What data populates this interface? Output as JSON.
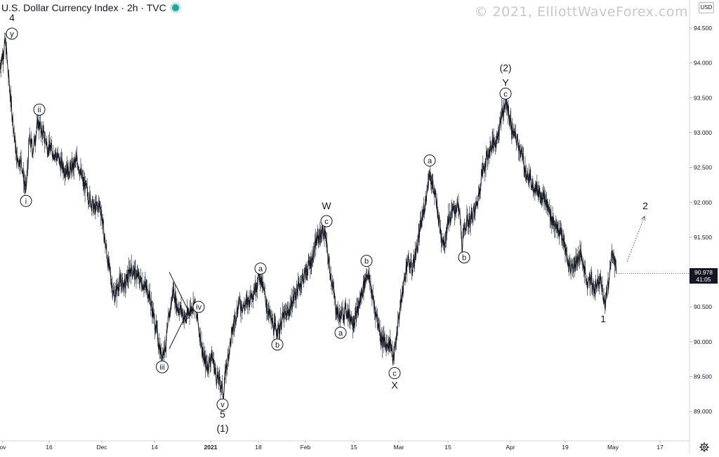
{
  "header": {
    "title": "U.S. Dollar Currency Index · 2h · TVC",
    "status_color": "#26a69a"
  },
  "watermark": "© 2021, ElliottWaveForex.com",
  "price_axis_unit": "USD",
  "last_price": {
    "value": "90.978",
    "countdown": "41:05",
    "numeric": 90.978
  },
  "settings_icon": "gear-icon",
  "chart_data": {
    "type": "line",
    "series": [
      {
        "values": [
          [
            0,
            93.95
          ],
          [
            8,
            94.3
          ],
          [
            12,
            93.8
          ],
          [
            17,
            93.3
          ],
          [
            24,
            92.6
          ],
          [
            30,
            92.6
          ],
          [
            37,
            92.15
          ],
          [
            42,
            92.9
          ],
          [
            47,
            92.75
          ],
          [
            54,
            93.15
          ],
          [
            60,
            93.0
          ],
          [
            68,
            92.8
          ],
          [
            78,
            92.7
          ],
          [
            90,
            92.5
          ],
          [
            100,
            92.45
          ],
          [
            110,
            92.6
          ],
          [
            118,
            92.3
          ],
          [
            126,
            92.1
          ],
          [
            134,
            91.9
          ],
          [
            143,
            91.95
          ],
          [
            150,
            91.4
          ],
          [
            157,
            90.95
          ],
          [
            163,
            90.65
          ],
          [
            170,
            90.85
          ],
          [
            178,
            90.8
          ],
          [
            186,
            91.05
          ],
          [
            194,
            90.95
          ],
          [
            203,
            90.85
          ],
          [
            212,
            90.7
          ],
          [
            220,
            90.3
          ],
          [
            226,
            90.0
          ],
          [
            230,
            89.8
          ],
          [
            236,
            89.95
          ],
          [
            241,
            90.35
          ],
          [
            247,
            90.75
          ],
          [
            252,
            90.5
          ],
          [
            258,
            90.45
          ],
          [
            264,
            90.3
          ],
          [
            270,
            90.45
          ],
          [
            277,
            90.55
          ],
          [
            284,
            90.15
          ],
          [
            290,
            89.75
          ],
          [
            296,
            89.65
          ],
          [
            302,
            89.8
          ],
          [
            308,
            89.5
          ],
          [
            314,
            89.4
          ],
          [
            318,
            89.25
          ],
          [
            322,
            89.6
          ],
          [
            327,
            89.9
          ],
          [
            333,
            90.25
          ],
          [
            340,
            90.55
          ],
          [
            348,
            90.5
          ],
          [
            355,
            90.6
          ],
          [
            362,
            90.75
          ],
          [
            370,
            90.95
          ],
          [
            376,
            90.7
          ],
          [
            383,
            90.4
          ],
          [
            390,
            90.2
          ],
          [
            396,
            90.15
          ],
          [
            403,
            90.35
          ],
          [
            410,
            90.4
          ],
          [
            417,
            90.6
          ],
          [
            424,
            90.75
          ],
          [
            431,
            90.9
          ],
          [
            438,
            91.05
          ],
          [
            445,
            91.2
          ],
          [
            451,
            91.45
          ],
          [
            457,
            91.55
          ],
          [
            462,
            91.6
          ],
          [
            468,
            91.15
          ],
          [
            473,
            90.85
          ],
          [
            478,
            90.5
          ],
          [
            483,
            90.35
          ],
          [
            488,
            90.4
          ],
          [
            493,
            90.45
          ],
          [
            499,
            90.35
          ],
          [
            505,
            90.3
          ],
          [
            512,
            90.55
          ],
          [
            518,
            90.8
          ],
          [
            523,
            91.0
          ],
          [
            528,
            90.8
          ],
          [
            533,
            90.5
          ],
          [
            538,
            90.3
          ],
          [
            543,
            90.05
          ],
          [
            550,
            89.95
          ],
          [
            556,
            90.0
          ],
          [
            560,
            89.7
          ],
          [
            563,
            89.95
          ],
          [
            568,
            90.35
          ],
          [
            574,
            90.75
          ],
          [
            580,
            91.15
          ],
          [
            587,
            91.05
          ],
          [
            593,
            91.3
          ],
          [
            598,
            91.6
          ],
          [
            603,
            91.85
          ],
          [
            608,
            92.15
          ],
          [
            612,
            92.45
          ],
          [
            617,
            92.2
          ],
          [
            622,
            91.95
          ],
          [
            628,
            91.55
          ],
          [
            633,
            91.4
          ],
          [
            638,
            91.75
          ],
          [
            645,
            91.85
          ],
          [
            651,
            91.95
          ],
          [
            655,
            91.8
          ],
          [
            658,
            91.35
          ],
          [
            663,
            91.7
          ],
          [
            670,
            91.75
          ],
          [
            676,
            91.85
          ],
          [
            681,
            92.05
          ],
          [
            686,
            92.4
          ],
          [
            692,
            92.6
          ],
          [
            698,
            92.75
          ],
          [
            703,
            92.85
          ],
          [
            708,
            92.9
          ],
          [
            713,
            93.2
          ],
          [
            718,
            93.35
          ],
          [
            722,
            93.4
          ],
          [
            727,
            93.15
          ],
          [
            732,
            92.95
          ],
          [
            738,
            92.85
          ],
          [
            745,
            92.6
          ],
          [
            751,
            92.35
          ],
          [
            757,
            92.3
          ],
          [
            763,
            92.2
          ],
          [
            769,
            92.15
          ],
          [
            775,
            92.05
          ],
          [
            781,
            91.9
          ],
          [
            787,
            91.75
          ],
          [
            793,
            91.6
          ],
          [
            799,
            91.55
          ],
          [
            805,
            91.35
          ],
          [
            810,
            91.1
          ],
          [
            815,
            91.05
          ],
          [
            820,
            91.15
          ],
          [
            826,
            91.25
          ],
          [
            831,
            91.1
          ],
          [
            836,
            90.85
          ],
          [
            841,
            90.9
          ],
          [
            846,
            90.75
          ],
          [
            851,
            90.85
          ],
          [
            856,
            90.95
          ],
          [
            860,
            90.55
          ],
          [
            864,
            90.65
          ],
          [
            868,
            90.95
          ],
          [
            872,
            91.3
          ],
          [
            876,
            91.15
          ],
          [
            878,
            90.978
          ]
        ]
      }
    ],
    "projection": {
      "from": [
        893,
        91.15
      ],
      "to": [
        918,
        91.8
      ]
    },
    "triangle": {
      "x0": 241,
      "y0_top": 91.0,
      "y0_bot": 89.9,
      "x1": 268,
      "y1": 90.45
    },
    "y_ticks": [
      "94.500",
      "94.000",
      "93.500",
      "93.000",
      "92.500",
      "92.000",
      "91.500",
      "91.000",
      "90.500",
      "90.000",
      "89.500",
      "89.000"
    ],
    "y_tick_values": [
      94.5,
      94.0,
      93.5,
      93.0,
      92.5,
      92.0,
      91.5,
      91.0,
      90.5,
      90.0,
      89.5,
      89.0
    ],
    "ylim": [
      88.5,
      95.0
    ],
    "x_ticks": [
      {
        "label": "ov",
        "x": 4
      },
      {
        "label": "16",
        "x": 70
      },
      {
        "label": "Dec",
        "x": 145
      },
      {
        "label": "14",
        "x": 220
      },
      {
        "label": "2021",
        "x": 300
      },
      {
        "label": "18",
        "x": 368
      },
      {
        "label": "Feb",
        "x": 435
      },
      {
        "label": "15",
        "x": 504
      },
      {
        "label": "Mar",
        "x": 568
      },
      {
        "label": "15",
        "x": 638
      },
      {
        "label": "Apr",
        "x": 727
      },
      {
        "label": "19",
        "x": 805
      },
      {
        "label": "May",
        "x": 873
      },
      {
        "label": "17",
        "x": 940
      }
    ],
    "annotations": [
      {
        "text": "4",
        "circled": false,
        "x": 17,
        "y": 94.65
      },
      {
        "text": "y",
        "circled": true,
        "x": 17,
        "y": 94.42
      },
      {
        "text": "ii",
        "circled": true,
        "x": 56,
        "y": 93.33
      },
      {
        "text": "i",
        "circled": true,
        "x": 37,
        "y": 92.02
      },
      {
        "text": "iii",
        "circled": true,
        "x": 231,
        "y": 89.64
      },
      {
        "text": "iv",
        "circled": true,
        "x": 283,
        "y": 90.5
      },
      {
        "text": "v",
        "circled": true,
        "x": 317,
        "y": 89.1
      },
      {
        "text": "5",
        "circled": false,
        "x": 317,
        "y": 88.96
      },
      {
        "text": "(1)",
        "circled": false,
        "x": 317,
        "y": 88.76
      },
      {
        "text": "a",
        "circled": true,
        "x": 371,
        "y": 91.05
      },
      {
        "text": "b",
        "circled": true,
        "x": 395,
        "y": 89.96
      },
      {
        "text": "W",
        "circled": false,
        "x": 465,
        "y": 91.95
      },
      {
        "text": "c",
        "circled": true,
        "x": 465,
        "y": 91.73
      },
      {
        "text": "a",
        "circled": true,
        "x": 485,
        "y": 90.13
      },
      {
        "text": "b",
        "circled": true,
        "x": 522,
        "y": 91.16
      },
      {
        "text": "c",
        "circled": true,
        "x": 562,
        "y": 89.55
      },
      {
        "text": "X",
        "circled": false,
        "x": 562,
        "y": 89.38
      },
      {
        "text": "a",
        "circled": true,
        "x": 612,
        "y": 92.6
      },
      {
        "text": "b",
        "circled": true,
        "x": 661,
        "y": 91.21
      },
      {
        "text": "(2)",
        "circled": false,
        "x": 720,
        "y": 93.93
      },
      {
        "text": "Y",
        "circled": false,
        "x": 720,
        "y": 93.72
      },
      {
        "text": "c",
        "circled": true,
        "x": 720,
        "y": 93.56
      },
      {
        "text": "1",
        "circled": false,
        "x": 859,
        "y": 90.33
      },
      {
        "text": "2",
        "circled": false,
        "x": 919,
        "y": 91.95
      }
    ]
  }
}
